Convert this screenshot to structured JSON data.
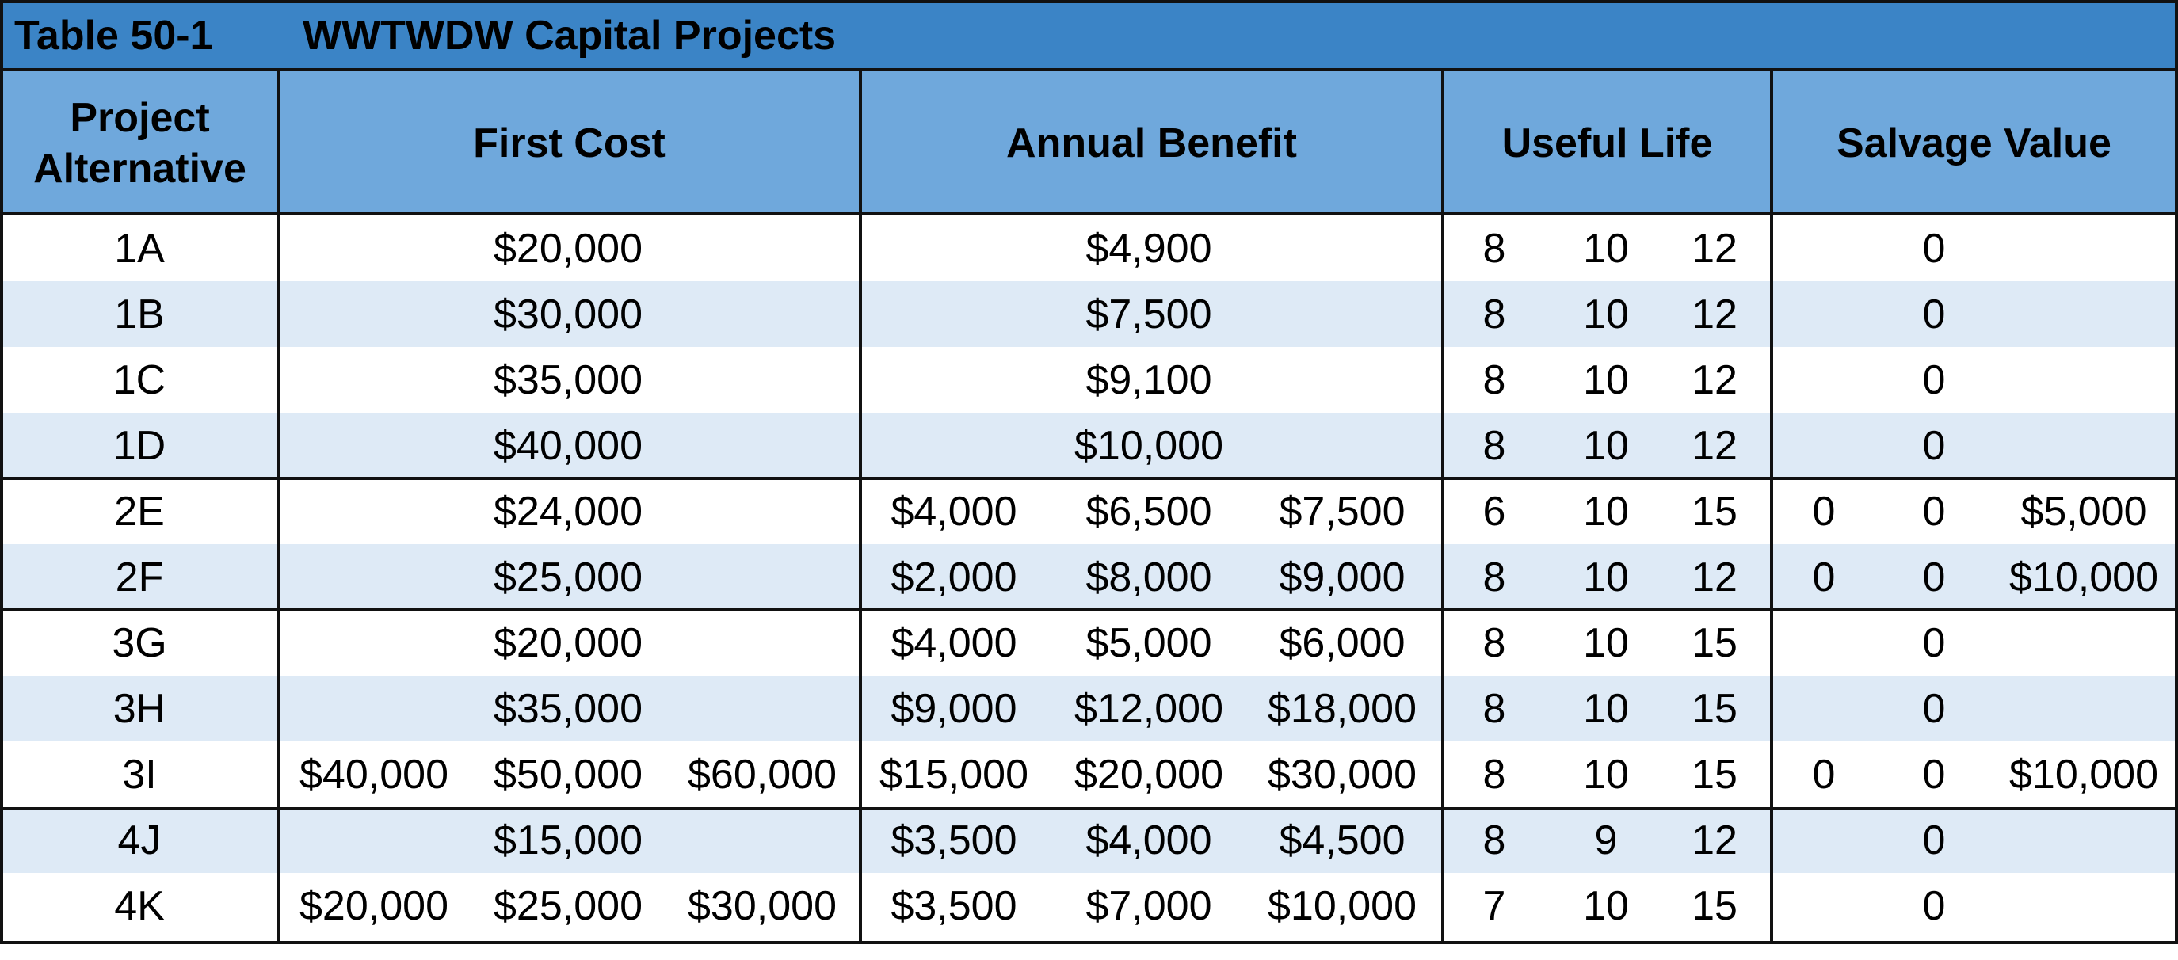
{
  "table": {
    "number": "Table 50-1",
    "title": "WWTWDW Capital Projects",
    "headers": {
      "alternative": [
        "Project",
        "Alternative"
      ],
      "first_cost": "First Cost",
      "annual_benefit": "Annual Benefit",
      "useful_life": "Useful Life",
      "salvage_value": "Salvage Value"
    },
    "rows": [
      {
        "alt": "1A",
        "first_cost": [
          "",
          "$20,000",
          ""
        ],
        "annual_benefit": [
          "",
          "$4,900",
          ""
        ],
        "useful_life": [
          "8",
          "10",
          "12"
        ],
        "salvage": [
          "",
          "0",
          ""
        ]
      },
      {
        "alt": "1B",
        "first_cost": [
          "",
          "$30,000",
          ""
        ],
        "annual_benefit": [
          "",
          "$7,500",
          ""
        ],
        "useful_life": [
          "8",
          "10",
          "12"
        ],
        "salvage": [
          "",
          "0",
          ""
        ]
      },
      {
        "alt": "1C",
        "first_cost": [
          "",
          "$35,000",
          ""
        ],
        "annual_benefit": [
          "",
          "$9,100",
          ""
        ],
        "useful_life": [
          "8",
          "10",
          "12"
        ],
        "salvage": [
          "",
          "0",
          ""
        ]
      },
      {
        "alt": "1D",
        "first_cost": [
          "",
          "$40,000",
          ""
        ],
        "annual_benefit": [
          "",
          "$10,000",
          ""
        ],
        "useful_life": [
          "8",
          "10",
          "12"
        ],
        "salvage": [
          "",
          "0",
          ""
        ]
      },
      {
        "alt": "2E",
        "first_cost": [
          "",
          "$24,000",
          ""
        ],
        "annual_benefit": [
          "$4,000",
          "$6,500",
          "$7,500"
        ],
        "useful_life": [
          "6",
          "10",
          "15"
        ],
        "salvage": [
          "0",
          "0",
          "$5,000"
        ]
      },
      {
        "alt": "2F",
        "first_cost": [
          "",
          "$25,000",
          ""
        ],
        "annual_benefit": [
          "$2,000",
          "$8,000",
          "$9,000"
        ],
        "useful_life": [
          "8",
          "10",
          "12"
        ],
        "salvage": [
          "0",
          "0",
          "$10,000"
        ]
      },
      {
        "alt": "3G",
        "first_cost": [
          "",
          "$20,000",
          ""
        ],
        "annual_benefit": [
          "$4,000",
          "$5,000",
          "$6,000"
        ],
        "useful_life": [
          "8",
          "10",
          "15"
        ],
        "salvage": [
          "",
          "0",
          ""
        ]
      },
      {
        "alt": "3H",
        "first_cost": [
          "",
          "$35,000",
          ""
        ],
        "annual_benefit": [
          "$9,000",
          "$12,000",
          "$18,000"
        ],
        "useful_life": [
          "8",
          "10",
          "15"
        ],
        "salvage": [
          "",
          "0",
          ""
        ]
      },
      {
        "alt": "3I",
        "first_cost": [
          "$40,000",
          "$50,000",
          "$60,000"
        ],
        "annual_benefit": [
          "$15,000",
          "$20,000",
          "$30,000"
        ],
        "useful_life": [
          "8",
          "10",
          "15"
        ],
        "salvage": [
          "0",
          "0",
          "$10,000"
        ]
      },
      {
        "alt": "4J",
        "first_cost": [
          "",
          "$15,000",
          ""
        ],
        "annual_benefit": [
          "$3,500",
          "$4,000",
          "$4,500"
        ],
        "useful_life": [
          "8",
          "9",
          "12"
        ],
        "salvage": [
          "",
          "0",
          ""
        ]
      },
      {
        "alt": "4K",
        "first_cost": [
          "$20,000",
          "$25,000",
          "$30,000"
        ],
        "annual_benefit": [
          "$3,500",
          "$7,000",
          "$10,000"
        ],
        "useful_life": [
          "7",
          "10",
          "15"
        ],
        "salvage": [
          "",
          "0",
          ""
        ]
      }
    ]
  },
  "colors": {
    "title_bar": "#3b84c6",
    "header": "#6fa8dc",
    "shaded_row": "#deeaf6",
    "border": "#111111"
  }
}
